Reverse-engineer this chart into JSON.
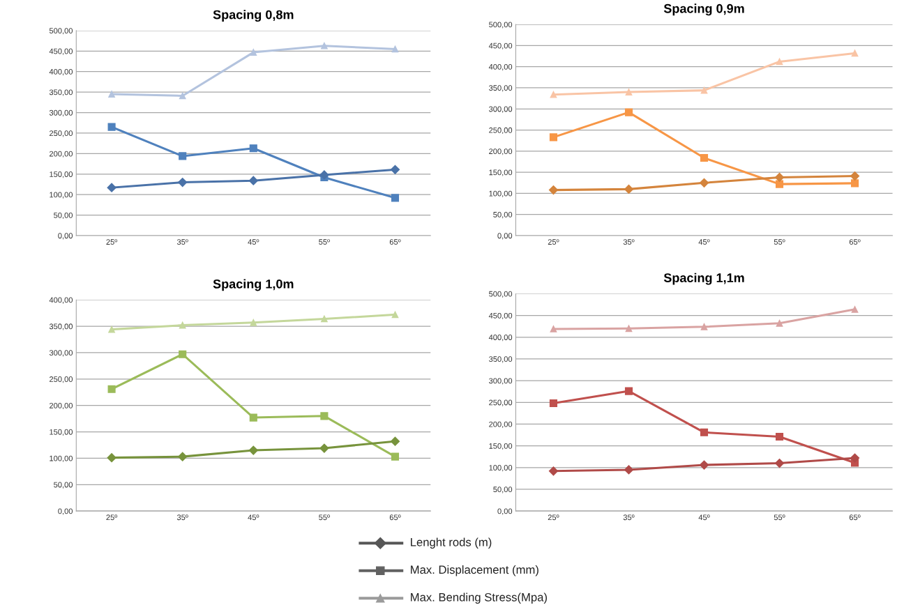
{
  "chart_data": [
    {
      "type": "line",
      "title": "Spacing 0,8m",
      "categories": [
        "25º",
        "35º",
        "45º",
        "55º",
        "65º"
      ],
      "ylim": [
        0,
        500
      ],
      "yticks": [
        {
          "value": 0,
          "label": "0,00"
        },
        {
          "value": 50,
          "label": "50,00"
        },
        {
          "value": 100,
          "label": "100,00"
        },
        {
          "value": 150,
          "label": "150,00"
        },
        {
          "value": 200,
          "label": "200,00"
        },
        {
          "value": 250,
          "label": "250,00"
        },
        {
          "value": 300,
          "label": "300,00"
        },
        {
          "value": 350,
          "label": "350,00"
        },
        {
          "value": 400,
          "label": "400,00"
        },
        {
          "value": 450,
          "label": "450,00"
        },
        {
          "value": 500,
          "label": "500,00"
        }
      ],
      "grid": "y",
      "series": [
        {
          "color": "#4a72a8",
          "marker": "diamond",
          "values": [
            117,
            130,
            134,
            148,
            161
          ]
        },
        {
          "color": "#4f81bd",
          "marker": "square",
          "values": [
            265,
            194,
            213,
            142,
            92
          ]
        },
        {
          "color": "#b3c3de",
          "marker": "triangle",
          "values": [
            345,
            341,
            447,
            463,
            455
          ]
        }
      ]
    },
    {
      "type": "line",
      "title": "Spacing 0,9m",
      "categories": [
        "25º",
        "35º",
        "45º",
        "55º",
        "65º"
      ],
      "ylim": [
        0,
        500
      ],
      "yticks": [
        {
          "value": 0,
          "label": "0,00"
        },
        {
          "value": 50,
          "label": "50,00"
        },
        {
          "value": 100,
          "label": "100,00"
        },
        {
          "value": 150,
          "label": "150,00"
        },
        {
          "value": 200,
          "label": "200,00"
        },
        {
          "value": 250,
          "label": "250,00"
        },
        {
          "value": 300,
          "label": "300,00"
        },
        {
          "value": 350,
          "label": "350,00"
        },
        {
          "value": 400,
          "label": "400,00"
        },
        {
          "value": 450,
          "label": "450,00"
        },
        {
          "value": 500,
          "label": "500,00"
        }
      ],
      "grid": "y",
      "series": [
        {
          "color": "#d4843c",
          "marker": "diamond",
          "values": [
            108,
            110,
            125,
            138,
            141
          ]
        },
        {
          "color": "#f79646",
          "marker": "square",
          "values": [
            233,
            292,
            184,
            122,
            124
          ]
        },
        {
          "color": "#f9c4a5",
          "marker": "triangle",
          "values": [
            334,
            340,
            344,
            412,
            432
          ]
        }
      ]
    },
    {
      "type": "line",
      "title": "Spacing 1,0m",
      "categories": [
        "25º",
        "35º",
        "45º",
        "55º",
        "65º"
      ],
      "ylim": [
        0,
        400
      ],
      "yticks": [
        {
          "value": 0,
          "label": "0,00"
        },
        {
          "value": 50,
          "label": "50,00"
        },
        {
          "value": 100,
          "label": "100,00"
        },
        {
          "value": 150,
          "label": "150,00"
        },
        {
          "value": 200,
          "label": "200,00"
        },
        {
          "value": 250,
          "label": "250,00"
        },
        {
          "value": 300,
          "label": "300,00"
        },
        {
          "value": 350,
          "label": "350,00"
        },
        {
          "value": 400,
          "label": "400,00"
        }
      ],
      "grid": "y",
      "series": [
        {
          "color": "#77933c",
          "marker": "diamond",
          "values": [
            101,
            103,
            115,
            119,
            132
          ]
        },
        {
          "color": "#9bbb59",
          "marker": "square",
          "values": [
            231,
            297,
            177,
            180,
            103
          ]
        },
        {
          "color": "#c4d79b",
          "marker": "triangle",
          "values": [
            344,
            352,
            357,
            364,
            372
          ]
        }
      ]
    },
    {
      "type": "line",
      "title": "Spacing 1,1m",
      "categories": [
        "25º",
        "35º",
        "45º",
        "55º",
        "65º"
      ],
      "ylim": [
        0,
        500
      ],
      "yticks": [
        {
          "value": 0,
          "label": "0,00"
        },
        {
          "value": 50,
          "label": "50,00"
        },
        {
          "value": 100,
          "label": "100,00"
        },
        {
          "value": 150,
          "label": "150,00"
        },
        {
          "value": 200,
          "label": "200,00"
        },
        {
          "value": 250,
          "label": "250,00"
        },
        {
          "value": 300,
          "label": "300,00"
        },
        {
          "value": 350,
          "label": "350,00"
        },
        {
          "value": 400,
          "label": "400,00"
        },
        {
          "value": 450,
          "label": "450,00"
        },
        {
          "value": 500,
          "label": "500,00"
        }
      ],
      "grid": "y",
      "series": [
        {
          "color": "#b04a48",
          "marker": "diamond",
          "values": [
            92,
            95,
            106,
            110,
            122
          ]
        },
        {
          "color": "#c0504d",
          "marker": "square",
          "values": [
            248,
            276,
            181,
            171,
            111
          ]
        },
        {
          "color": "#d9a3a2",
          "marker": "triangle",
          "values": [
            419,
            420,
            424,
            432,
            464
          ]
        }
      ]
    },
    {
      "type": "other",
      "annotations": [
        "Lenght rods (m)",
        "Max. Displacement (mm)",
        "Max. Bending Stress(Mpa)"
      ]
    }
  ]
}
